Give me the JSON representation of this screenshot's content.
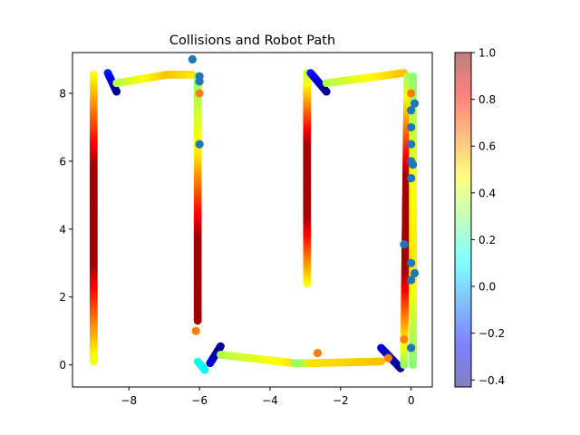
{
  "chart_data": {
    "type": "scatter",
    "title": "Collisions and Robot Path",
    "xlabel": "",
    "ylabel": "",
    "xlim": [
      -9.6,
      0.6
    ],
    "ylim": [
      -0.65,
      9.2
    ],
    "x_ticks": [
      -8,
      -6,
      -4,
      -2,
      0
    ],
    "x_tick_labels": [
      "−8",
      "−6",
      "−4",
      "−2",
      "0"
    ],
    "y_ticks": [
      0,
      2,
      4,
      6,
      8
    ],
    "y_tick_labels": [
      "0",
      "2",
      "4",
      "6",
      "8"
    ],
    "grid": false,
    "colormap": "jet",
    "colorbar": {
      "range": [
        -0.43,
        1.0
      ],
      "ticks": [
        -0.4,
        -0.2,
        0.0,
        0.2,
        0.4,
        0.6,
        0.8,
        1.0
      ],
      "tick_labels": [
        "−0.4",
        "−0.2",
        "0.0",
        "0.2",
        "0.4",
        "0.6",
        "0.8",
        "1.0"
      ],
      "alpha": 0.5
    },
    "path_segments": [
      {
        "from": [
          -9.0,
          8.55
        ],
        "to": [
          -9.0,
          0.1
        ],
        "v": [
          0.45,
          0.95,
          0.95,
          0.45
        ]
      },
      {
        "from": [
          -8.6,
          8.6
        ],
        "to": [
          -8.35,
          8.05
        ],
        "v": [
          -0.2,
          -0.4
        ]
      },
      {
        "from": [
          -8.35,
          8.3
        ],
        "to": [
          -6.9,
          8.55
        ],
        "v": [
          0.35,
          0.55
        ]
      },
      {
        "from": [
          -6.9,
          8.55
        ],
        "to": [
          -6.2,
          8.55
        ],
        "v": [
          0.55,
          0.5
        ]
      },
      {
        "from": [
          -6.05,
          8.5
        ],
        "to": [
          -6.05,
          1.3
        ],
        "v": [
          0.3,
          0.5,
          0.95,
          0.95
        ]
      },
      {
        "from": [
          -6.05,
          0.1
        ],
        "to": [
          -5.85,
          -0.15
        ],
        "v": [
          0.15,
          0.1
        ]
      },
      {
        "from": [
          -5.7,
          0.05
        ],
        "to": [
          -5.4,
          0.55
        ],
        "v": [
          -0.3,
          -0.4
        ]
      },
      {
        "from": [
          -5.4,
          0.3
        ],
        "to": [
          -3.3,
          0.05
        ],
        "v": [
          0.35,
          0.5
        ]
      },
      {
        "from": [
          -3.3,
          0.05
        ],
        "to": [
          -2.95,
          0.05
        ],
        "v": [
          0.3,
          0.35
        ]
      },
      {
        "from": [
          -2.95,
          2.4
        ],
        "to": [
          -2.95,
          8.6
        ],
        "v": [
          0.45,
          0.95,
          0.95,
          0.4
        ]
      },
      {
        "from": [
          -2.85,
          8.6
        ],
        "to": [
          -2.4,
          8.05
        ],
        "v": [
          -0.2,
          -0.4
        ]
      },
      {
        "from": [
          -2.4,
          8.3
        ],
        "to": [
          -0.2,
          8.6
        ],
        "v": [
          0.35,
          0.55
        ]
      },
      {
        "from": [
          -2.9,
          0.05
        ],
        "to": [
          -0.85,
          0.1
        ],
        "v": [
          0.5,
          0.55
        ]
      },
      {
        "from": [
          -0.85,
          0.5
        ],
        "to": [
          -0.3,
          -0.1
        ],
        "v": [
          -0.3,
          -0.4
        ]
      },
      {
        "from": [
          -0.2,
          0.0
        ],
        "to": [
          -0.1,
          8.5
        ],
        "v": [
          0.3,
          0.95,
          0.95,
          0.35
        ]
      },
      {
        "from": [
          0.05,
          8.5
        ],
        "to": [
          0.05,
          0.0
        ],
        "v": [
          0.3,
          0.45,
          0.5,
          0.3
        ]
      }
    ],
    "series": [
      {
        "color": "#1f77b4",
        "points": [
          [
            -6.2,
            9.0
          ],
          [
            -6.0,
            8.5
          ],
          [
            -6.0,
            8.35
          ],
          [
            -6.0,
            6.5
          ],
          [
            0.0,
            7.5
          ],
          [
            0.1,
            7.7
          ],
          [
            0.0,
            7.0
          ],
          [
            0.0,
            6.5
          ],
          [
            0.0,
            6.0
          ],
          [
            0.05,
            5.9
          ],
          [
            0.0,
            5.5
          ],
          [
            -0.2,
            3.55
          ],
          [
            0.0,
            3.0
          ],
          [
            0.1,
            2.7
          ],
          [
            0.0,
            2.5
          ],
          [
            0.0,
            0.5
          ]
        ]
      },
      {
        "color": "#ff7f0e",
        "points": [
          [
            -6.0,
            8.0
          ],
          [
            -6.1,
            1.0
          ],
          [
            -2.65,
            0.35
          ],
          [
            -0.2,
            0.75
          ],
          [
            -0.65,
            0.2
          ],
          [
            0.0,
            8.0
          ]
        ]
      }
    ]
  }
}
